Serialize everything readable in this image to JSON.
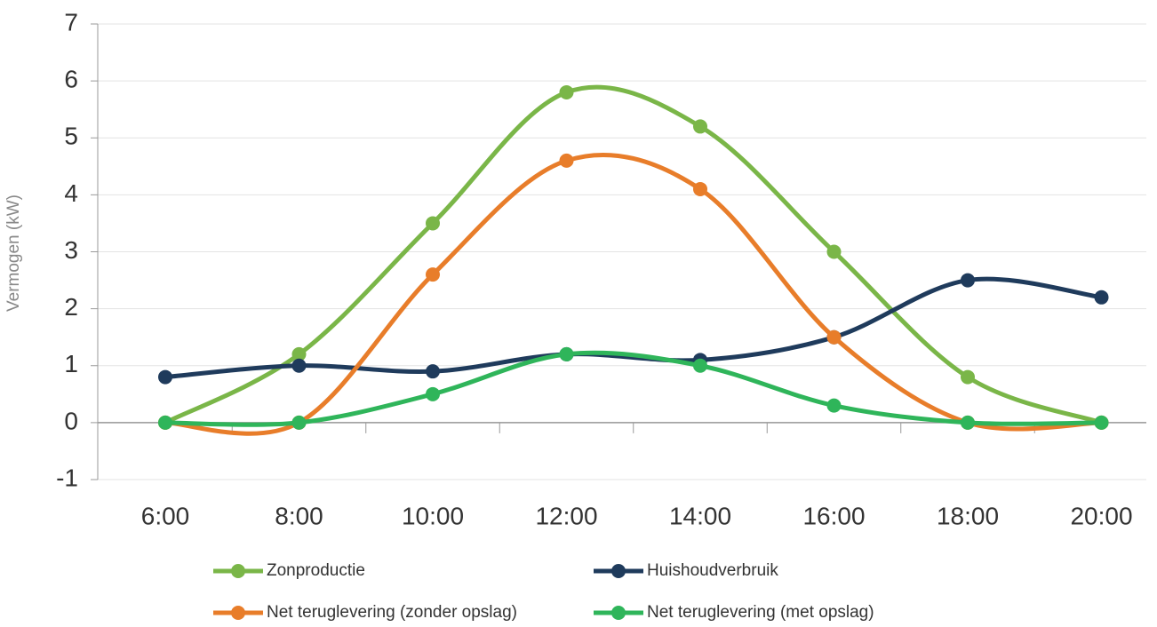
{
  "chart_data": {
    "type": "line",
    "y_label": "Vermogen (kW)",
    "categories": [
      "6:00",
      "8:00",
      "10:00",
      "12:00",
      "14:00",
      "16:00",
      "18:00",
      "20:00"
    ],
    "series": [
      {
        "name": "Zonproductie",
        "color": "#7ab648",
        "values": [
          0,
          1.2,
          3.5,
          5.8,
          5.2,
          3,
          0.8,
          0
        ]
      },
      {
        "name": "Huishoudverbruik",
        "color": "#1f3b5c",
        "values": [
          0.8,
          1,
          0.9,
          1.2,
          1.1,
          1.5,
          2.5,
          2.2
        ]
      },
      {
        "name": "Net teruglevering (zonder opslag)",
        "color": "#e87d2a",
        "values": [
          0,
          0,
          2.6,
          4.6,
          4.1,
          1.5,
          0,
          0
        ]
      },
      {
        "name": "Net teruglevering (met opslag)",
        "color": "#2fb55a",
        "values": [
          0,
          0,
          0.5,
          1.2,
          1,
          0.3,
          0,
          0
        ]
      }
    ],
    "ylim": [
      -1,
      7
    ],
    "yticks": [
      -1,
      0,
      1,
      2,
      3,
      4,
      5,
      6,
      7
    ],
    "grid": true,
    "smooth": true,
    "legend": "bottom"
  }
}
